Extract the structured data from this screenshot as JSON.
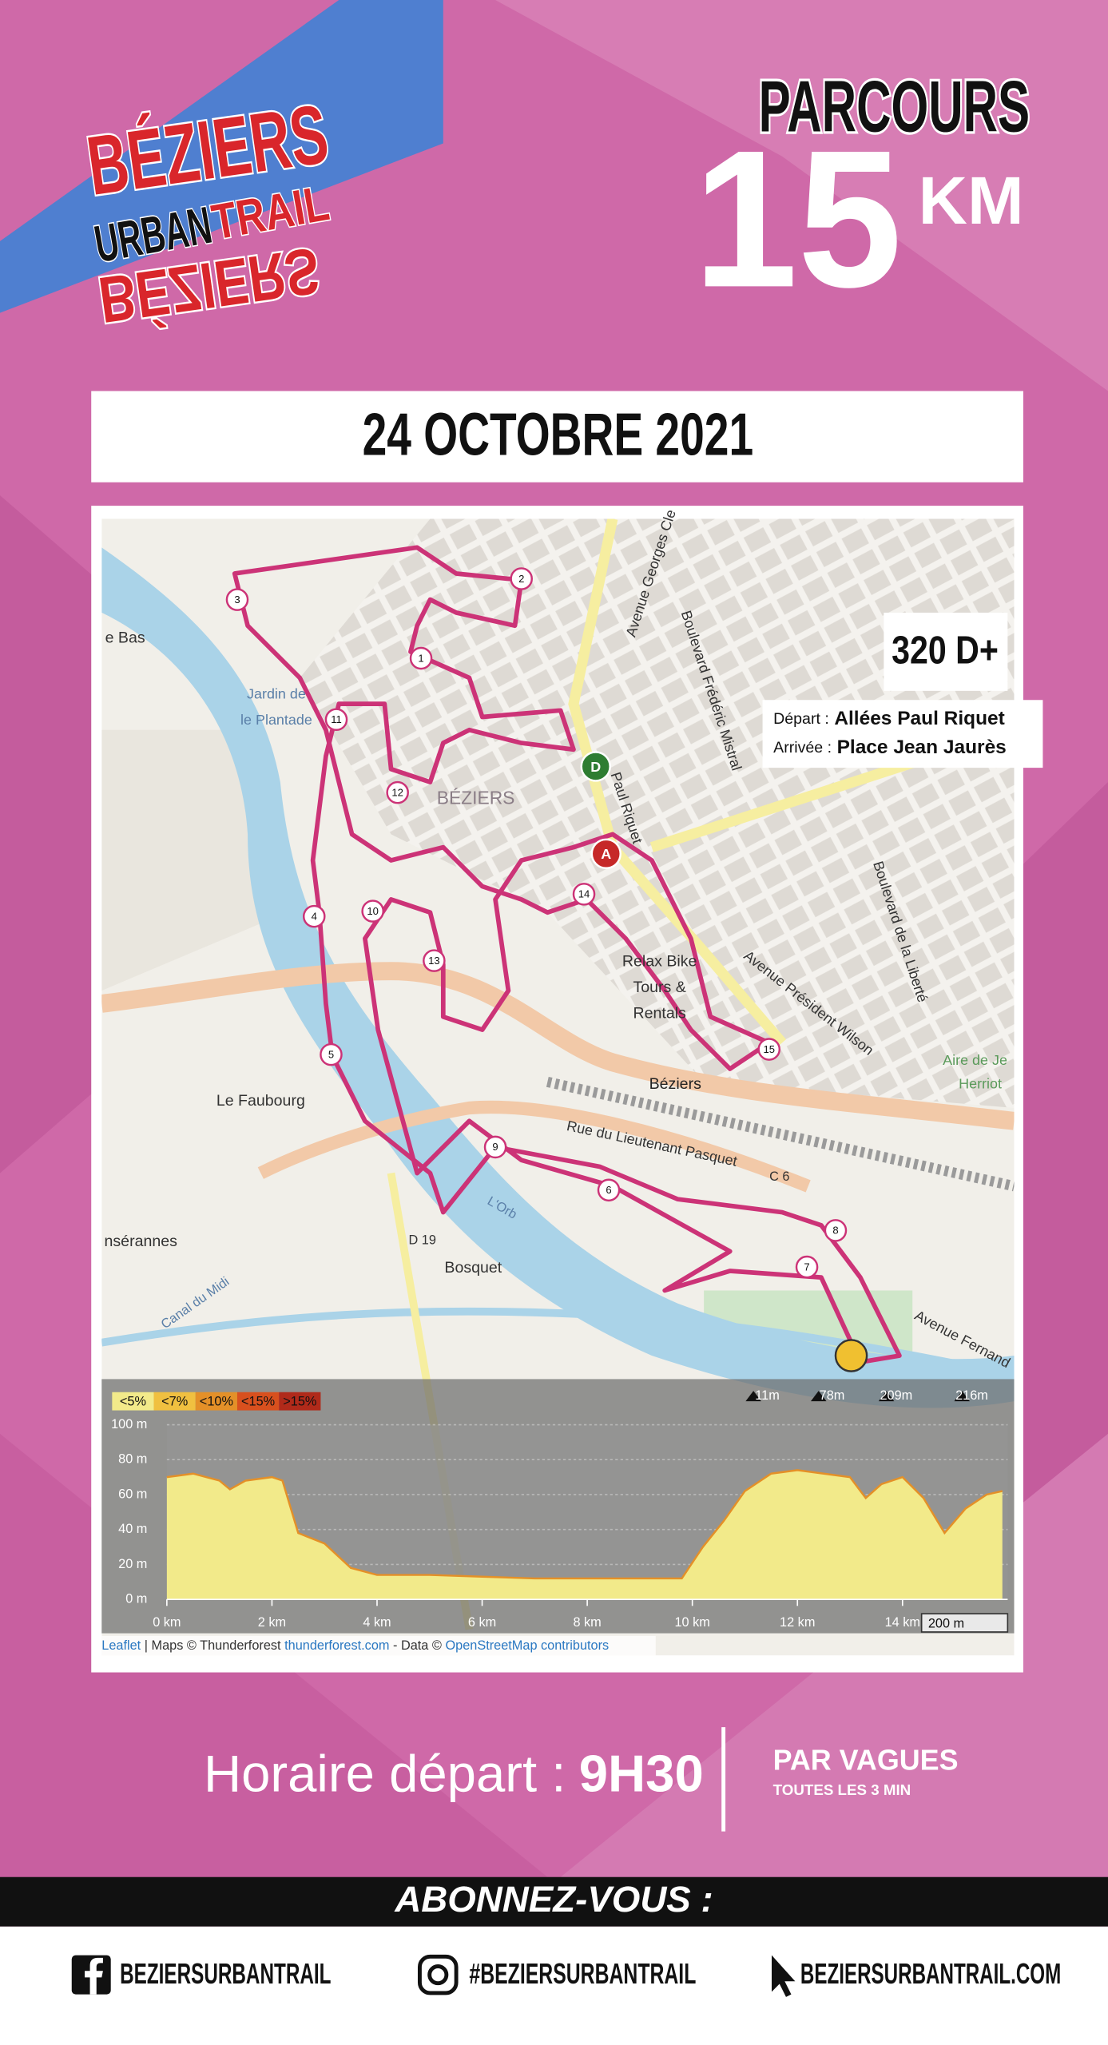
{
  "logo": {
    "line1": "BÉZIERS",
    "line2": "URBAN",
    "line3": "TRAIL"
  },
  "header": {
    "title": "PARCOURS",
    "distance": "15",
    "unit": "KM"
  },
  "date": "24 OCTOBRE 2021",
  "map": {
    "elevation_gain": "320 D+",
    "start_label": "Départ :",
    "start": "Allées Paul Riquet",
    "finish_label": "Arrivée :",
    "finish": "Place Jean Jaurès",
    "markers": {
      "start": "D",
      "arrival": "A"
    },
    "checkpoints": [
      "1",
      "2",
      "3",
      "4",
      "5",
      "6",
      "7",
      "8",
      "9",
      "10",
      "11",
      "12",
      "13",
      "14",
      "15"
    ],
    "places": [
      "BÉZIERS",
      "Béziers",
      "Le Faubourg",
      "Bosquet",
      "L'Orb",
      "Rue du Lieutenant Pasquet",
      "Avenue Président Wilson",
      "Boulevard de la Liberté",
      "Boulevard Frédéric Mistral",
      "Avenue Georges Cle",
      "Relax Bike",
      "Tours &",
      "Rentals",
      "Jardin de",
      "le Plantade",
      "Aire de Je",
      "Herriot",
      "e Bas",
      "nsérannes",
      "Canal du Midi",
      "Avenue Fernand",
      "Paul Riquet",
      "C 6",
      "D 19"
    ],
    "attribution": [
      "Leaflet",
      " | Maps © Thunderforest ",
      "thunderforest.com",
      " - Data © ",
      "OpenStreetMap contributors"
    ],
    "scale": "200 m"
  },
  "elevation": {
    "legend": [
      {
        "label": "<5%",
        "color": "#f2ea8a"
      },
      {
        "label": "<7%",
        "color": "#f0c040"
      },
      {
        "label": "<10%",
        "color": "#e49028"
      },
      {
        "label": "<15%",
        "color": "#d8501e"
      },
      {
        "label": ">15%",
        "color": "#b02a1a"
      }
    ],
    "stats": [
      "11m",
      "78m",
      "209m",
      "216m"
    ],
    "xlim": [
      0,
      16
    ],
    "ylim": [
      0,
      100
    ],
    "xticks": [
      {
        "value": 0,
        "label": "0 km"
      },
      {
        "value": 2,
        "label": "2 km"
      },
      {
        "value": 4,
        "label": "4 km"
      },
      {
        "value": 6,
        "label": "6 km"
      },
      {
        "value": 8,
        "label": "8 km"
      },
      {
        "value": 10,
        "label": "10 km"
      },
      {
        "value": 12,
        "label": "12 km"
      },
      {
        "value": 14,
        "label": "14 km"
      }
    ],
    "yticks": [
      {
        "value": 0,
        "label": "0 m"
      },
      {
        "value": 20,
        "label": "20 m"
      },
      {
        "value": 40,
        "label": "40 m"
      },
      {
        "value": 60,
        "label": "60 m"
      },
      {
        "value": 80,
        "label": "80 m"
      },
      {
        "value": 100,
        "label": "100 m"
      }
    ],
    "profile": {
      "x": [
        0,
        0.5,
        1,
        1.2,
        1.5,
        2,
        2.2,
        2.5,
        3,
        3.5,
        4,
        5,
        6,
        7,
        8,
        9,
        9.8,
        10.2,
        10.6,
        11,
        11.5,
        12,
        12.5,
        13,
        13.3,
        13.6,
        14,
        14.4,
        14.8,
        15.2,
        15.6,
        15.9
      ],
      "values": [
        70,
        72,
        68,
        63,
        68,
        70,
        68,
        38,
        32,
        18,
        14,
        14,
        13,
        12,
        12,
        12,
        12,
        30,
        45,
        62,
        72,
        74,
        72,
        70,
        58,
        66,
        70,
        58,
        38,
        52,
        60,
        62
      ]
    }
  },
  "start_time": {
    "label": "Horaire départ :",
    "time": "9H30"
  },
  "waves": {
    "title": "PAR VAGUES",
    "subtitle": "TOUTES LES 3 MIN"
  },
  "footer": {
    "cta": "ABONNEZ-VOUS :",
    "facebook": "BEZIERSURBANTRAIL",
    "instagram": "#BEZIERSURBANTRAIL",
    "website": "BEZIERSURBANTRAIL.COM"
  }
}
